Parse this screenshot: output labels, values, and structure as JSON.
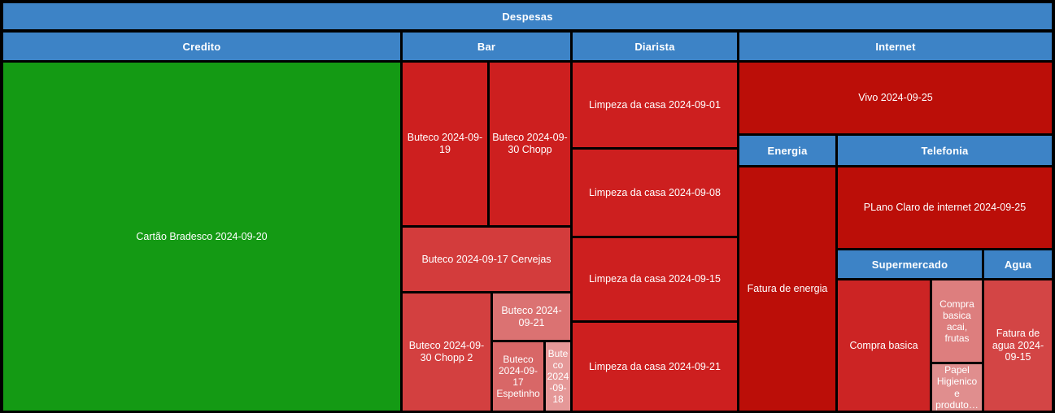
{
  "chart_data": {
    "type": "treemap",
    "title": "Despesas",
    "legend": "none",
    "value_labels_shown": false,
    "header_color": "#3d83c6",
    "border_color": "#000000",
    "note": "cell area encodes expense size; approx_area_pct estimated from rendered pixel areas",
    "groups": [
      {
        "name": "Credito",
        "children": [
          {
            "label": "Cartão Bradesco 2024-09-20",
            "color": "#149a14",
            "approx_area_pct": 40.6
          }
        ]
      },
      {
        "name": "Bar",
        "children": [
          {
            "label": "Buteco 2024-09-19",
            "color": "#cd1f1f",
            "approx_area_pct": 4.0
          },
          {
            "label": "Buteco 2024-09-30 Chopp",
            "color": "#cd1f1f",
            "approx_area_pct": 3.8
          },
          {
            "label": "Buteco 2024-09-17 Cervejas",
            "color": "#d33c3c",
            "approx_area_pct": 3.1
          },
          {
            "label": "Buteco 2024-09-30 Chopp 2",
            "color": "#d34040",
            "approx_area_pct": 3.0
          },
          {
            "label": "Buteco 2024-09-21",
            "color": "#db7272",
            "approx_area_pct": 1.1
          },
          {
            "label": "Buteco 2024-09-17 Espetinho",
            "color": "#d86767",
            "approx_area_pct": 1.0
          },
          {
            "label": "Buteco 2024-09-18",
            "color": "#e59898",
            "approx_area_pct": 0.5
          }
        ]
      },
      {
        "name": "Diarista",
        "children": [
          {
            "label": "Limpeza da casa 2024-09-01",
            "color": "#cd1f1f",
            "approx_area_pct": 4.1
          },
          {
            "label": "Limpeza da casa 2024-09-08",
            "color": "#cd1f1f",
            "approx_area_pct": 4.2
          },
          {
            "label": "Limpeza da casa 2024-09-15",
            "color": "#cd1f1f",
            "approx_area_pct": 4.1
          },
          {
            "label": "Limpeza da casa 2024-09-21",
            "color": "#cd1f1f",
            "approx_area_pct": 4.1
          }
        ]
      },
      {
        "name": "Internet",
        "children": [
          {
            "label": "Vivo 2024-09-25",
            "color": "#bb0e08",
            "approx_area_pct": 6.5
          }
        ]
      },
      {
        "name": "Energia",
        "children": [
          {
            "label": "Fatura de energia",
            "color": "#bb0e08",
            "approx_area_pct": 6.9
          }
        ]
      },
      {
        "name": "Telefonia",
        "children": [
          {
            "label": "PLano Claro de internet 2024-09-25",
            "color": "#bb0e08",
            "approx_area_pct": 5.1
          }
        ]
      },
      {
        "name": "Supermercado",
        "children": [
          {
            "label": "Compra basica",
            "color": "#cc2424",
            "approx_area_pct": 3.5
          },
          {
            "label": "Compra basica acai, frutas",
            "color": "#dd7e7e",
            "approx_area_pct": 1.2
          },
          {
            "label": "Papel Higienico e produto…",
            "color": "#e08e8e",
            "approx_area_pct": 0.7
          }
        ]
      },
      {
        "name": "Agua",
        "children": [
          {
            "label": "Fatura de agua 2024-09-15",
            "color": "#d34545",
            "approx_area_pct": 2.6
          }
        ]
      }
    ]
  }
}
